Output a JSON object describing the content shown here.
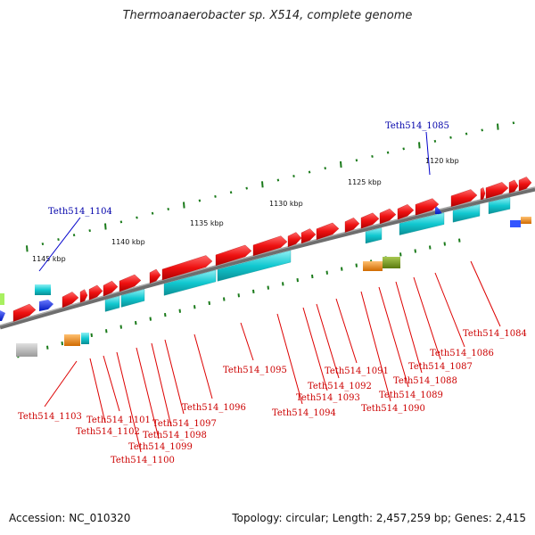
{
  "title": "Thermoanaerobacter sp. X514, complete genome",
  "footer": {
    "accession": "Accession: NC_010320",
    "topology": "Topology: circular; Length: 2,457,259 bp; Genes: 2,415"
  },
  "scale_labels": [
    "1120 kbp",
    "1125 kbp",
    "1130 kbp",
    "1135 kbp",
    "1140 kbp",
    "1145 kbp"
  ],
  "gene_labels_top": [
    "Teth514_1085",
    "Teth514_1104"
  ],
  "gene_labels_bottom": [
    "Teth514_1084",
    "Teth514_1086",
    "Teth514_1087",
    "Teth514_1088",
    "Teth514_1089",
    "Teth514_1090",
    "Teth514_1091",
    "Teth514_1092",
    "Teth514_1093",
    "Teth514_1094",
    "Teth514_1095",
    "Teth514_1096",
    "Teth514_1097",
    "Teth514_1098",
    "Teth514_1099",
    "Teth514_1100",
    "Teth514_1101",
    "Teth514_1102",
    "Teth514_1103"
  ],
  "colors": {
    "forward_gene": "#ee1111",
    "reverse_gene": "#1133ee",
    "feature_cyan": "#11c8d0",
    "feature_orange": "#f08a10",
    "feature_olive": "#7a9a20",
    "feature_gray": "#aaaaaa",
    "backbone": "#777777",
    "tick": "#1a7a1a",
    "label_line_red": "#dd0000",
    "label_line_blue": "#0000cc"
  }
}
